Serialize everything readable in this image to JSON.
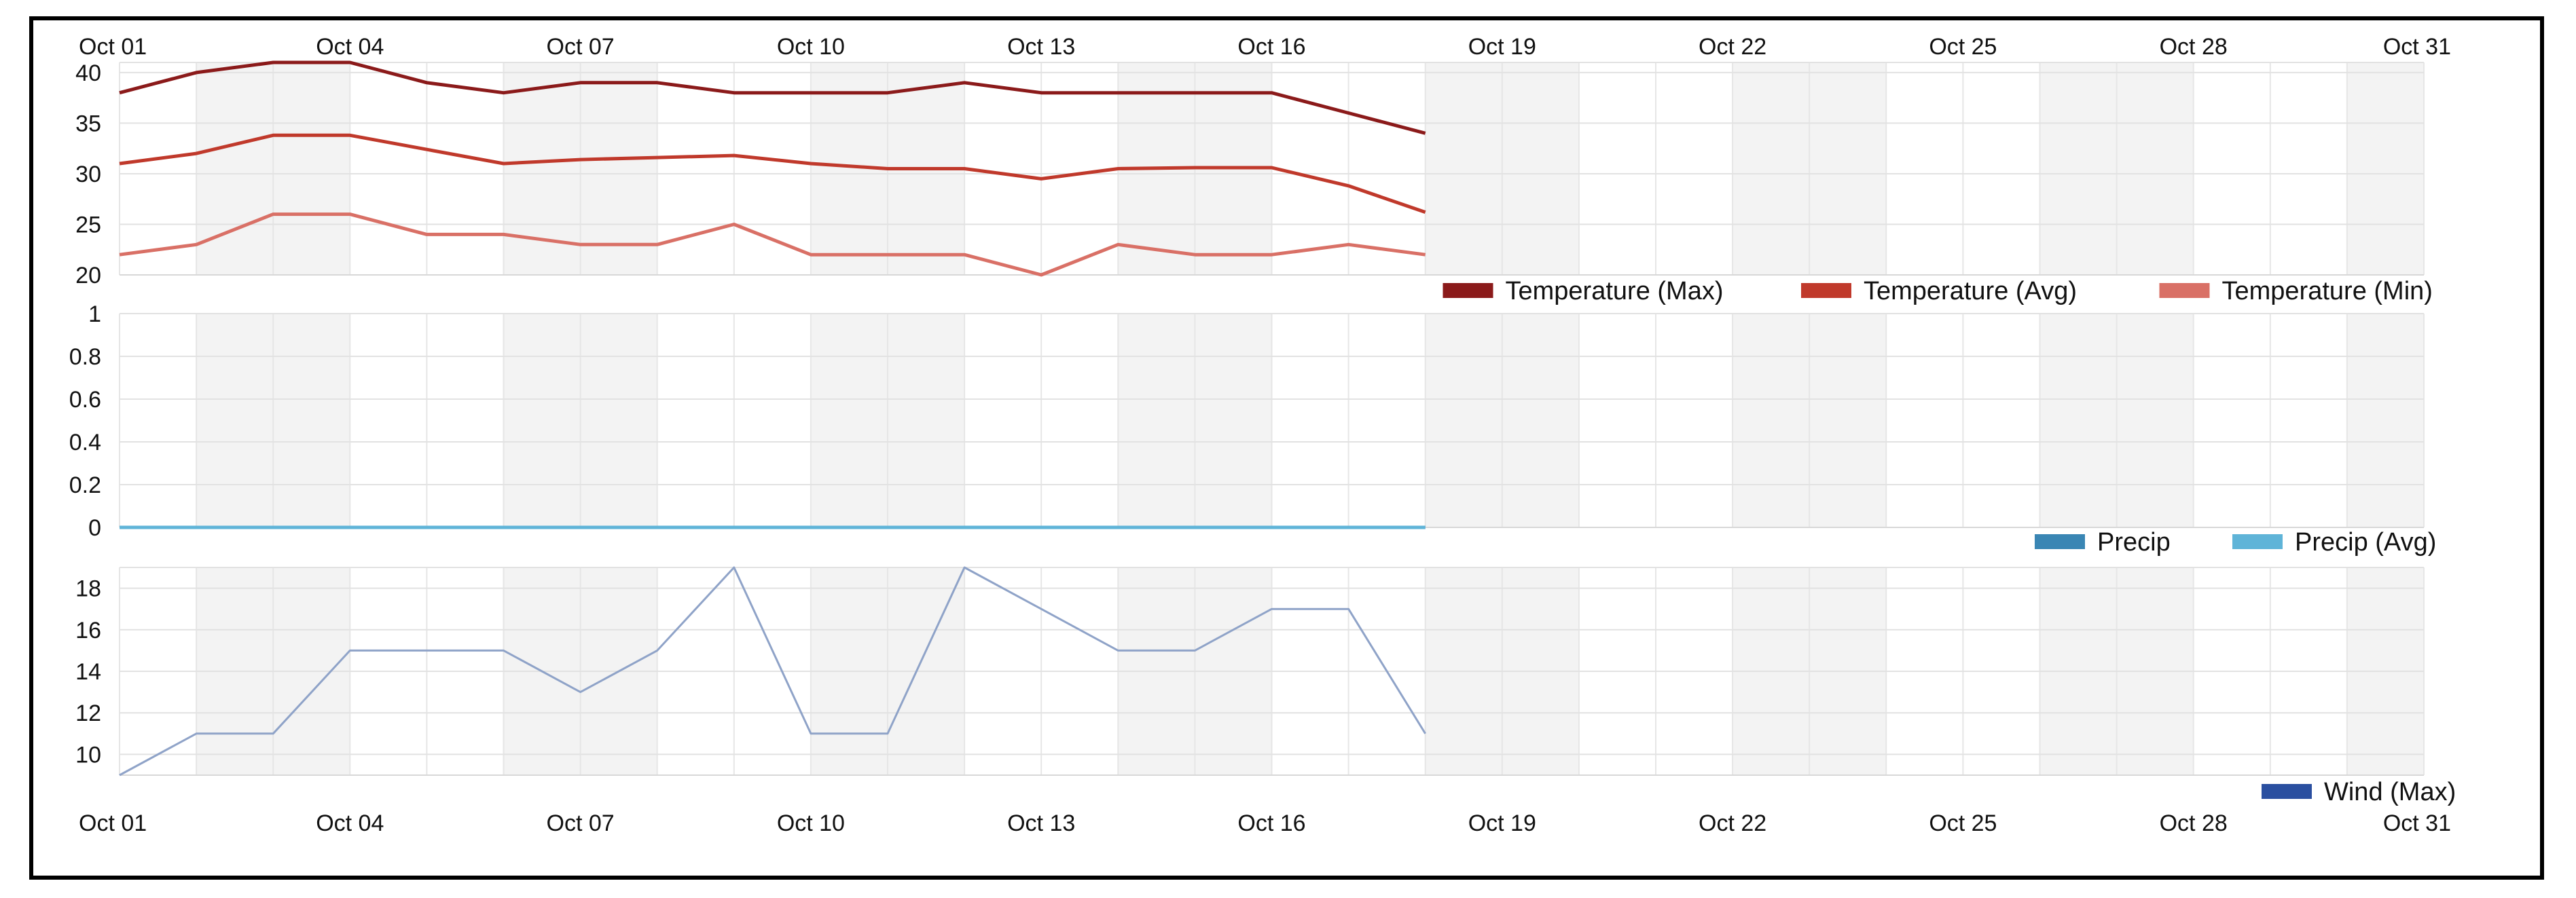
{
  "chart_data": {
    "x_ticks": [
      "Oct 01",
      "Oct 04",
      "Oct 07",
      "Oct 10",
      "Oct 13",
      "Oct 16",
      "Oct 19",
      "Oct 22",
      "Oct 25",
      "Oct 28",
      "Oct 31"
    ],
    "x_domain": [
      "2022-10-01",
      "2022-10-31"
    ],
    "grid": true,
    "panels": [
      {
        "type": "line",
        "title": "",
        "ylim": [
          20,
          41
        ],
        "y_ticks": [
          20,
          25,
          30,
          35,
          40
        ],
        "legend_position": "bottom-right",
        "x": [
          "Oct 01",
          "Oct 02",
          "Oct 03",
          "Oct 04",
          "Oct 05",
          "Oct 06",
          "Oct 07",
          "Oct 08",
          "Oct 09",
          "Oct 10",
          "Oct 11",
          "Oct 12",
          "Oct 13",
          "Oct 14",
          "Oct 15",
          "Oct 16",
          "Oct 17",
          "Oct 18"
        ],
        "series": [
          {
            "name": "Temperature (Max)",
            "color": "#8b1a1a",
            "values": [
              38,
              40,
              41,
              41,
              39,
              38,
              39,
              39,
              38,
              38,
              38,
              39,
              38,
              38,
              38,
              38,
              36,
              34
            ]
          },
          {
            "name": "Temperature (Avg)",
            "color": "#c0392b",
            "values": [
              31,
              32,
              33.8,
              33.8,
              32.4,
              31,
              31.4,
              31.6,
              31.8,
              31,
              30.5,
              30.5,
              29.5,
              30.5,
              30.6,
              30.6,
              28.8,
              26.2
            ]
          },
          {
            "name": "Temperature (Min)",
            "color": "#d97066",
            "values": [
              22,
              23,
              26,
              26,
              24,
              24,
              23,
              23,
              25,
              22,
              22,
              22,
              20,
              23,
              22,
              22,
              23,
              22
            ]
          }
        ]
      },
      {
        "type": "line",
        "title": "",
        "ylim": [
          0,
          1
        ],
        "y_ticks": [
          "0",
          "0.2",
          "0.4",
          "0.6",
          "0.8",
          "1"
        ],
        "legend_position": "bottom-right",
        "x": [
          "Oct 01",
          "Oct 02",
          "Oct 03",
          "Oct 04",
          "Oct 05",
          "Oct 06",
          "Oct 07",
          "Oct 08",
          "Oct 09",
          "Oct 10",
          "Oct 11",
          "Oct 12",
          "Oct 13",
          "Oct 14",
          "Oct 15",
          "Oct 16",
          "Oct 17",
          "Oct 18"
        ],
        "series": [
          {
            "name": "Precip",
            "color": "#3a86b4",
            "values": [
              0,
              0,
              0,
              0,
              0,
              0,
              0,
              0,
              0,
              0,
              0,
              0,
              0,
              0,
              0,
              0,
              0,
              0
            ]
          },
          {
            "name": "Precip (Avg)",
            "color": "#5fb4d8",
            "values": [
              0,
              0,
              0,
              0,
              0,
              0,
              0,
              0,
              0,
              0,
              0,
              0,
              0,
              0,
              0,
              0,
              0,
              0
            ]
          }
        ]
      },
      {
        "type": "line",
        "title": "",
        "ylim": [
          9,
          19
        ],
        "y_ticks": [
          10,
          12,
          14,
          16,
          18
        ],
        "legend_position": "bottom-right",
        "x": [
          "Oct 01",
          "Oct 02",
          "Oct 03",
          "Oct 04",
          "Oct 05",
          "Oct 06",
          "Oct 07",
          "Oct 08",
          "Oct 09",
          "Oct 10",
          "Oct 11",
          "Oct 12",
          "Oct 13",
          "Oct 14",
          "Oct 15",
          "Oct 16",
          "Oct 17",
          "Oct 18"
        ],
        "series": [
          {
            "name": "Wind (Max)",
            "color": "#2a4fa0",
            "line_color": "#8fa3c8",
            "values": [
              9,
              11,
              11,
              15,
              15,
              15,
              13,
              15,
              19,
              11,
              11,
              19,
              17,
              15,
              15,
              17,
              17,
              11
            ]
          }
        ]
      }
    ]
  }
}
